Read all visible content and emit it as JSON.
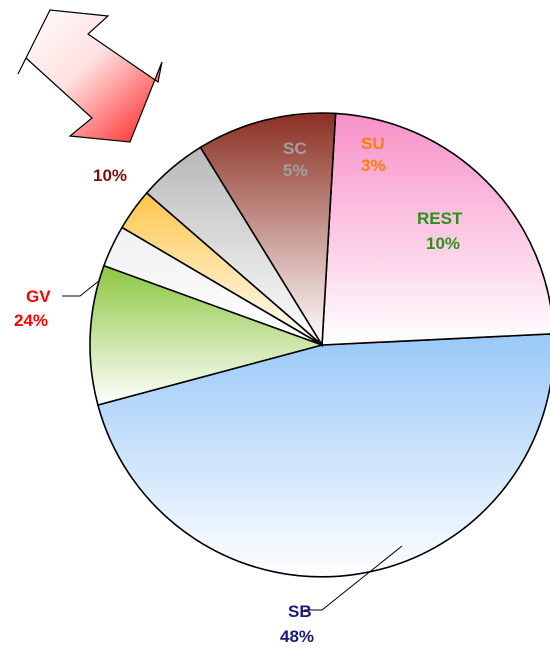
{
  "chart_data": {
    "type": "pie",
    "title": "",
    "slices": [
      {
        "label": "SB",
        "percent_text": "48%",
        "value": 48,
        "color": "#99c8f8"
      },
      {
        "label": "GV",
        "percent_text": "24%",
        "value": 24,
        "color": "#f890c8"
      },
      {
        "label": "",
        "percent_text": "10%",
        "value": 10,
        "color": "#8b2f22"
      },
      {
        "label": "SC",
        "percent_text": "5%",
        "value": 5,
        "color": "#b8b8b8"
      },
      {
        "label": "",
        "percent_text": "",
        "value": 3,
        "color": "#ffc64a"
      },
      {
        "label": "SU",
        "percent_text": "3%",
        "value": 3,
        "color": "#f0f0f0"
      },
      {
        "label": "REST",
        "percent_text": "10%",
        "value": 10,
        "color": "#8cc63f"
      }
    ],
    "label_colors": {
      "SB": "#1a1a7a",
      "GV": "#ff0000",
      "SC": "#a0a0a0",
      "SU": "#ff7f00",
      "REST": "#2f8f1a",
      "unnamed": "#7a1010"
    }
  },
  "decoration": {
    "arrow_icon": "double-headed-arrow-icon",
    "arrow_color": "#ff2020"
  }
}
